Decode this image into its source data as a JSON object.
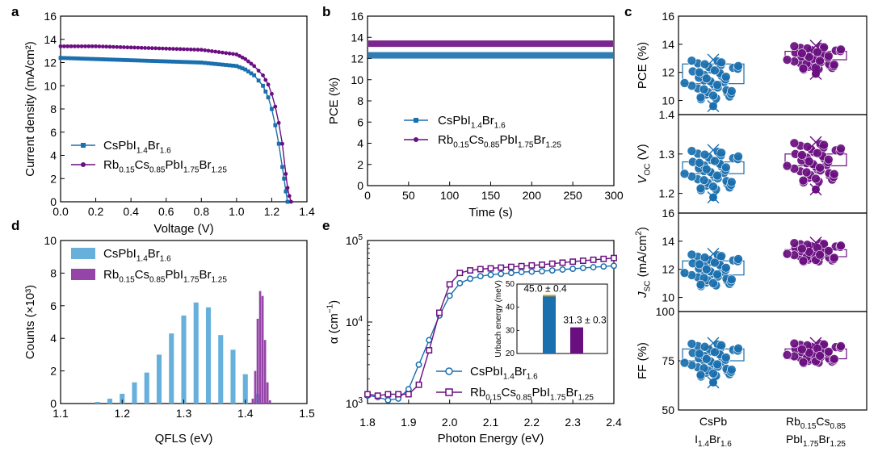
{
  "colors": {
    "blue": "#1a6fae",
    "purple": "#6a0f80",
    "hist_blue": "#68b0dc",
    "hist_purple": "#9545a8",
    "inset_gold": "#c9a227"
  },
  "icons": {
    "marker_blue_a": "filled-square",
    "marker_purple_a": "filled-circle",
    "marker_blue_e": "open-circle",
    "marker_purple_e": "open-square"
  },
  "chart_data": [
    {
      "panel": "a",
      "type": "line",
      "xlabel": "Voltage (V)",
      "ylabel": "Current density (mA/cm²)",
      "xlim": [
        0,
        1.4
      ],
      "ylim": [
        0,
        16
      ],
      "xticks": [
        0.0,
        0.2,
        0.4,
        0.6,
        0.8,
        1.0,
        1.2,
        1.4
      ],
      "xtick_labels": [
        "0.0",
        "0.2",
        "0.4",
        "0.6",
        "0.8",
        "1.0",
        "1.2",
        "1.4"
      ],
      "yticks": [
        0,
        2,
        4,
        6,
        8,
        10,
        12,
        14,
        16
      ],
      "legend_position": "bottom-left",
      "series": [
        {
          "name": "CsPbI1.4Br1.6",
          "name_parts": [
            [
              "CsPbI",
              ""
            ],
            [
              "1.4",
              "sub"
            ],
            [
              "Br",
              ""
            ],
            [
              "1.6",
              "sub"
            ]
          ],
          "color": "blue",
          "x": [
            0.0,
            0.2,
            0.4,
            0.6,
            0.8,
            1.0,
            1.05,
            1.1,
            1.15,
            1.18,
            1.2,
            1.22,
            1.24,
            1.26,
            1.27,
            1.28,
            1.29
          ],
          "y": [
            12.4,
            12.3,
            12.2,
            12.1,
            12.0,
            11.7,
            11.4,
            10.9,
            10.0,
            9.0,
            8.0,
            6.6,
            5.0,
            3.0,
            2.0,
            0.9,
            0.0
          ]
        },
        {
          "name": "Rb0.15Cs0.85PbI1.75Br1.25",
          "name_parts": [
            [
              "Rb",
              ""
            ],
            [
              "0.15",
              "sub"
            ],
            [
              "Cs",
              ""
            ],
            [
              "0.85",
              "sub"
            ],
            [
              "PbI",
              ""
            ],
            [
              "1.75",
              "sub"
            ],
            [
              "Br",
              ""
            ],
            [
              "1.25",
              "sub"
            ]
          ],
          "color": "purple",
          "x": [
            0.0,
            0.2,
            0.4,
            0.6,
            0.8,
            1.0,
            1.05,
            1.1,
            1.15,
            1.18,
            1.2,
            1.22,
            1.24,
            1.26,
            1.28,
            1.29,
            1.3,
            1.31
          ],
          "y": [
            13.4,
            13.4,
            13.3,
            13.2,
            13.1,
            12.7,
            12.3,
            11.7,
            10.9,
            10.1,
            9.3,
            8.2,
            6.8,
            5.0,
            2.4,
            1.2,
            0.5,
            0.0
          ]
        }
      ]
    },
    {
      "panel": "b",
      "type": "line",
      "xlabel": "Time (s)",
      "ylabel": "PCE (%)",
      "xlim": [
        0,
        300
      ],
      "ylim": [
        0,
        16
      ],
      "xticks": [
        0,
        50,
        100,
        150,
        200,
        250,
        300
      ],
      "yticks": [
        0,
        2,
        4,
        6,
        8,
        10,
        12,
        14,
        16
      ],
      "legend_position": "middle-right",
      "series": [
        {
          "name": "CsPbI1.4Br1.6",
          "name_parts": [
            [
              "CsPbI",
              ""
            ],
            [
              "1.4",
              "sub"
            ],
            [
              "Br",
              ""
            ],
            [
              "1.6",
              "sub"
            ]
          ],
          "color": "blue",
          "x": [
            0,
            300
          ],
          "y": [
            12.3,
            12.3
          ]
        },
        {
          "name": "Rb0.15Cs0.85PbI1.75Br1.25",
          "name_parts": [
            [
              "Rb",
              ""
            ],
            [
              "0.15",
              "sub"
            ],
            [
              "Cs",
              ""
            ],
            [
              "0.85",
              "sub"
            ],
            [
              "PbI",
              ""
            ],
            [
              "1.75",
              "sub"
            ],
            [
              "Br",
              ""
            ],
            [
              "1.25",
              "sub"
            ]
          ],
          "color": "purple",
          "x": [
            0,
            300
          ],
          "y": [
            13.4,
            13.4
          ]
        }
      ]
    },
    {
      "panel": "c",
      "type": "scatter",
      "categories": [
        [
          "CsPb",
          "I1.4Br1.6"
        ],
        [
          "Rb0.15Cs0.85",
          "PbI1.75Br1.25"
        ]
      ],
      "category_parts": [
        [
          [
            [
              "CsPb",
              ""
            ]
          ],
          [
            [
              "I",
              ""
            ],
            [
              "1.4",
              "sub"
            ],
            [
              "Br",
              ""
            ],
            [
              "1.6",
              "sub"
            ]
          ]
        ],
        [
          [
            [
              "Rb",
              ""
            ],
            [
              "0.15",
              "sub"
            ],
            [
              "Cs",
              ""
            ],
            [
              "0.85",
              "sub"
            ]
          ],
          [
            [
              "PbI",
              ""
            ],
            [
              "1.75",
              "sub"
            ],
            [
              "Br",
              ""
            ],
            [
              "1.25",
              "sub"
            ]
          ]
        ]
      ],
      "subplots": [
        {
          "ylabel_parts": [
            [
              "PCE (%)",
              ""
            ]
          ],
          "ylim": [
            9,
            16
          ],
          "yticks": [
            10,
            12,
            14,
            16
          ],
          "groups": [
            {
              "color": "blue",
              "box": [
                11.2,
                12.6
              ],
              "range": [
                9.6,
                12.9
              ],
              "outliers": [
                9.6
              ]
            },
            {
              "color": "purple",
              "box": [
                12.9,
                13.5
              ],
              "range": [
                11.9,
                13.9
              ],
              "outliers": [
                11.9
              ]
            }
          ]
        },
        {
          "ylabel_parts": [
            [
              "V",
              "it"
            ],
            [
              "OC",
              "sub"
            ],
            [
              " (V)",
              ""
            ]
          ],
          "ylim": [
            1.15,
            1.4
          ],
          "yticks": [
            1.2,
            1.3,
            1.4
          ],
          "groups": [
            {
              "color": "blue",
              "box": [
                1.25,
                1.28
              ],
              "range": [
                1.19,
                1.31
              ],
              "outliers": [
                1.19
              ]
            },
            {
              "color": "purple",
              "box": [
                1.27,
                1.3
              ],
              "range": [
                1.21,
                1.33
              ],
              "outliers": [
                1.21
              ]
            }
          ]
        },
        {
          "ylabel_parts": [
            [
              "J",
              "it"
            ],
            [
              "SC",
              "sub"
            ],
            [
              " (mA/cm",
              ""
            ],
            [
              "2",
              "sup"
            ],
            [
              ")",
              ""
            ]
          ],
          "ylim": [
            9,
            16
          ],
          "yticks": [
            10,
            12,
            14,
            16
          ],
          "groups": [
            {
              "color": "blue",
              "box": [
                11.6,
                12.6
              ],
              "range": [
                10.4,
                13.1
              ],
              "outliers": []
            },
            {
              "color": "purple",
              "box": [
                12.9,
                13.4
              ],
              "range": [
                12.3,
                13.9
              ],
              "outliers": []
            }
          ]
        },
        {
          "ylabel_parts": [
            [
              "FF (%)",
              ""
            ]
          ],
          "ylim": [
            50,
            100
          ],
          "yticks": [
            50,
            75,
            100
          ],
          "groups": [
            {
              "color": "blue",
              "box": [
                75,
                81
              ],
              "range": [
                64,
                84
              ],
              "outliers": [
                64
              ]
            },
            {
              "color": "purple",
              "box": [
                76,
                81
              ],
              "range": [
                72,
                84
              ],
              "outliers": []
            }
          ]
        }
      ]
    },
    {
      "panel": "d",
      "type": "bar",
      "xlabel": "QFLS (eV)",
      "ylabel": "Counts (×10³)",
      "xlim": [
        1.1,
        1.5
      ],
      "ylim": [
        0,
        10
      ],
      "xticks": [
        1.1,
        1.2,
        1.3,
        1.4,
        1.5
      ],
      "yticks": [
        0,
        2,
        4,
        6,
        8,
        10
      ],
      "legend_position": "top-left",
      "series": [
        {
          "name": "CsPbI1.4Br1.6",
          "name_parts": [
            [
              "CsPbI",
              ""
            ],
            [
              "1.4",
              "sub"
            ],
            [
              "Br",
              ""
            ],
            [
              "1.6",
              "sub"
            ]
          ],
          "color": "hist_blue",
          "bar_width": 0.008,
          "x": [
            1.16,
            1.18,
            1.2,
            1.22,
            1.24,
            1.26,
            1.28,
            1.3,
            1.32,
            1.34,
            1.36,
            1.38,
            1.4,
            1.42
          ],
          "values": [
            0.1,
            0.3,
            0.6,
            1.3,
            1.9,
            3.0,
            4.3,
            5.4,
            6.2,
            5.9,
            4.2,
            3.3,
            1.8,
            0.6
          ]
        },
        {
          "name": "Rb0.15Cs0.85PbI1.75Br1.25",
          "name_parts": [
            [
              "Rb",
              ""
            ],
            [
              "0.15",
              "sub"
            ],
            [
              "Cs",
              ""
            ],
            [
              "0.85",
              "sub"
            ],
            [
              "PbI",
              ""
            ],
            [
              "1.75",
              "sub"
            ],
            [
              "Br",
              ""
            ],
            [
              "1.25",
              "sub"
            ]
          ],
          "color": "hist_purple",
          "bar_width": 0.0035,
          "x": [
            1.412,
            1.416,
            1.42,
            1.424,
            1.428,
            1.432,
            1.436,
            1.44
          ],
          "values": [
            0.3,
            2.0,
            5.2,
            6.9,
            6.6,
            3.9,
            1.3,
            0.2
          ]
        }
      ]
    },
    {
      "panel": "e",
      "type": "line",
      "xlabel": "Photon Energy (eV)",
      "ylabel_parts": [
        [
          "α (cm",
          ""
        ],
        [
          "−1",
          "sup"
        ],
        [
          ")",
          ""
        ]
      ],
      "xlim": [
        1.8,
        2.4
      ],
      "ylim": [
        1000,
        100000
      ],
      "yscale": "log",
      "xticks": [
        1.8,
        1.9,
        2.0,
        2.1,
        2.2,
        2.3,
        2.4
      ],
      "ytick_parts": [
        [
          [
            "10",
            ""
          ],
          [
            "3",
            "sup"
          ]
        ],
        [
          [
            "10",
            ""
          ],
          [
            "4",
            "sup"
          ]
        ],
        [
          [
            "10",
            ""
          ],
          [
            "5",
            "sup"
          ]
        ]
      ],
      "legend_position": "bottom-right",
      "series": [
        {
          "name": "CsPbI1.4Br1.6",
          "name_parts": [
            [
              "CsPbI",
              ""
            ],
            [
              "1.4",
              "sub"
            ],
            [
              "Br",
              ""
            ],
            [
              "1.6",
              "sub"
            ]
          ],
          "color": "blue",
          "x": [
            1.8,
            1.825,
            1.85,
            1.875,
            1.9,
            1.925,
            1.95,
            1.975,
            2.0,
            2.025,
            2.05,
            2.075,
            2.1,
            2.125,
            2.15,
            2.175,
            2.2,
            2.225,
            2.25,
            2.275,
            2.3,
            2.325,
            2.35,
            2.375,
            2.4
          ],
          "y": [
            1250,
            1200,
            1100,
            1150,
            1500,
            3000,
            6000,
            12000,
            21000,
            30000,
            34000,
            36500,
            38000,
            39000,
            40000,
            41000,
            41500,
            42000,
            43000,
            44000,
            45000,
            46000,
            47000,
            48000,
            49000
          ]
        },
        {
          "name": "Rb0.15Cs0.85PbI1.75Br1.25",
          "name_parts": [
            [
              "Rb",
              ""
            ],
            [
              "0.15",
              "sub"
            ],
            [
              "Cs",
              ""
            ],
            [
              "0.85",
              "sub"
            ],
            [
              "PbI",
              ""
            ],
            [
              "1.75",
              "sub"
            ],
            [
              "Br",
              ""
            ],
            [
              "1.25",
              "sub"
            ]
          ],
          "color": "purple",
          "x": [
            1.8,
            1.825,
            1.85,
            1.875,
            1.9,
            1.925,
            1.95,
            1.975,
            2.0,
            2.025,
            2.05,
            2.075,
            2.1,
            2.125,
            2.15,
            2.175,
            2.2,
            2.225,
            2.25,
            2.275,
            2.3,
            2.325,
            2.35,
            2.375,
            2.4
          ],
          "y": [
            1300,
            1250,
            1300,
            1300,
            1300,
            1700,
            4500,
            13000,
            29000,
            40000,
            43000,
            44500,
            45500,
            46500,
            47500,
            48500,
            49500,
            50500,
            52000,
            53500,
            55000,
            56500,
            58000,
            59500,
            61000
          ]
        }
      ],
      "inset": {
        "type": "bar",
        "ylabel": "Urbach energy (meV)",
        "ylim": [
          20,
          50
        ],
        "yticks": [
          20,
          30,
          40,
          50
        ],
        "bars": [
          {
            "value": 45.0,
            "label": "45.0 ± 0.4",
            "color": "blue"
          },
          {
            "value": 31.3,
            "label": "31.3 ± 0.3",
            "color": "purple"
          }
        ]
      }
    }
  ]
}
